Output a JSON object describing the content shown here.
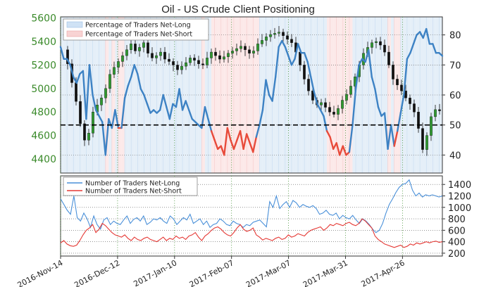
{
  "chart_data": [
    {
      "type": "line",
      "title": "Oil - US Crude Client Positioning",
      "left_axis": {
        "ticks": [
          4400,
          4600,
          4800,
          5000,
          5200,
          5400,
          5600
        ],
        "range": [
          4280,
          5610
        ],
        "color": "#3a8a2a"
      },
      "right_axis": {
        "ticks": [
          40,
          50,
          60,
          70,
          80
        ],
        "range": [
          34,
          86
        ]
      },
      "reference_level": 50,
      "legend": [
        "Percentage of Traders Net-Long",
        "Percentage of Traders Net-Short"
      ],
      "legend_placement": "top-left",
      "price_candles_close": [
        5330,
        5210,
        5050,
        4890,
        4700,
        4560,
        4620,
        4800,
        4860,
        4920,
        5000,
        5120,
        5180,
        5230,
        5280,
        5330,
        5380,
        5320,
        5350,
        5390,
        5300,
        5260,
        5280,
        5310,
        5250,
        5230,
        5200,
        5160,
        5190,
        5220,
        5260,
        5240,
        5210,
        5200,
        5260,
        5310,
        5280,
        5250,
        5270,
        5300,
        5320,
        5340,
        5360,
        5330,
        5300,
        5320,
        5380,
        5410,
        5440,
        5460,
        5470,
        5480,
        5450,
        5420,
        5390,
        5310,
        5200,
        5080,
        4980,
        4900,
        4860,
        4880,
        4840,
        4800,
        4780,
        4830,
        4900,
        4950,
        5020,
        5100,
        5200,
        5300,
        5350,
        5390,
        5400,
        5370,
        5310,
        5200,
        5080,
        5030,
        4980,
        4920,
        4870,
        4800,
        4660,
        4480,
        4600,
        4760,
        4820,
        4810
      ],
      "net_long_pct_series": [
        {
          "x": 0,
          "y": 76
        },
        {
          "x": 1,
          "y": 72
        },
        {
          "x": 2,
          "y": 72
        },
        {
          "x": 3,
          "y": 70
        },
        {
          "x": 4,
          "y": 66
        },
        {
          "x": 5,
          "y": 64
        },
        {
          "x": 6,
          "y": 67
        },
        {
          "x": 7,
          "y": 68
        },
        {
          "x": 8,
          "y": 52
        },
        {
          "x": 9,
          "y": 70
        },
        {
          "x": 10,
          "y": 60
        },
        {
          "x": 11,
          "y": 55
        },
        {
          "x": 12,
          "y": 53
        },
        {
          "x": 13,
          "y": 51
        },
        {
          "x": 14,
          "y": 40
        },
        {
          "x": 15,
          "y": 52
        },
        {
          "x": 16,
          "y": 49
        },
        {
          "x": 17,
          "y": 55
        },
        {
          "x": 18,
          "y": 49
        },
        {
          "x": 19,
          "y": 49
        },
        {
          "x": 20,
          "y": 59
        },
        {
          "x": 21,
          "y": 63
        },
        {
          "x": 22,
          "y": 66
        },
        {
          "x": 23,
          "y": 70
        },
        {
          "x": 24,
          "y": 67
        },
        {
          "x": 25,
          "y": 62
        },
        {
          "x": 26,
          "y": 60
        },
        {
          "x": 27,
          "y": 57
        },
        {
          "x": 28,
          "y": 54
        },
        {
          "x": 29,
          "y": 55
        },
        {
          "x": 30,
          "y": 54
        },
        {
          "x": 31,
          "y": 55
        },
        {
          "x": 32,
          "y": 60
        },
        {
          "x": 33,
          "y": 56
        },
        {
          "x": 34,
          "y": 52
        },
        {
          "x": 35,
          "y": 57
        },
        {
          "x": 36,
          "y": 56
        },
        {
          "x": 37,
          "y": 62
        },
        {
          "x": 38,
          "y": 55
        },
        {
          "x": 39,
          "y": 58
        },
        {
          "x": 40,
          "y": 55
        },
        {
          "x": 41,
          "y": 52
        },
        {
          "x": 42,
          "y": 51
        },
        {
          "x": 43,
          "y": 50
        },
        {
          "x": 44,
          "y": 49
        },
        {
          "x": 45,
          "y": 56
        },
        {
          "x": 46,
          "y": 52
        },
        {
          "x": 47,
          "y": 48
        },
        {
          "x": 48,
          "y": 45
        },
        {
          "x": 49,
          "y": 42
        },
        {
          "x": 50,
          "y": 43
        },
        {
          "x": 51,
          "y": 40
        },
        {
          "x": 52,
          "y": 49
        },
        {
          "x": 53,
          "y": 45
        },
        {
          "x": 54,
          "y": 42
        },
        {
          "x": 55,
          "y": 45
        },
        {
          "x": 56,
          "y": 48
        },
        {
          "x": 57,
          "y": 42
        },
        {
          "x": 58,
          "y": 47
        },
        {
          "x": 59,
          "y": 44
        },
        {
          "x": 60,
          "y": 41
        },
        {
          "x": 61,
          "y": 46
        },
        {
          "x": 62,
          "y": 50
        },
        {
          "x": 63,
          "y": 55
        },
        {
          "x": 64,
          "y": 65
        },
        {
          "x": 65,
          "y": 60
        },
        {
          "x": 66,
          "y": 58
        },
        {
          "x": 67,
          "y": 66
        },
        {
          "x": 68,
          "y": 76
        },
        {
          "x": 69,
          "y": 78
        },
        {
          "x": 70,
          "y": 76
        },
        {
          "x": 71,
          "y": 73
        },
        {
          "x": 72,
          "y": 70
        },
        {
          "x": 73,
          "y": 72
        },
        {
          "x": 74,
          "y": 77
        },
        {
          "x": 75,
          "y": 74
        },
        {
          "x": 76,
          "y": 74
        },
        {
          "x": 77,
          "y": 71
        },
        {
          "x": 78,
          "y": 66
        },
        {
          "x": 79,
          "y": 61
        },
        {
          "x": 80,
          "y": 57
        },
        {
          "x": 81,
          "y": 55
        },
        {
          "x": 82,
          "y": 53
        },
        {
          "x": 83,
          "y": 48
        },
        {
          "x": 84,
          "y": 46
        },
        {
          "x": 85,
          "y": 42
        },
        {
          "x": 86,
          "y": 44
        },
        {
          "x": 87,
          "y": 40
        },
        {
          "x": 88,
          "y": 43
        },
        {
          "x": 89,
          "y": 40
        },
        {
          "x": 90,
          "y": 41
        },
        {
          "x": 91,
          "y": 50
        },
        {
          "x": 92,
          "y": 62
        },
        {
          "x": 93,
          "y": 70
        },
        {
          "x": 94,
          "y": 72
        },
        {
          "x": 95,
          "y": 71
        },
        {
          "x": 96,
          "y": 75
        },
        {
          "x": 97,
          "y": 66
        },
        {
          "x": 98,
          "y": 62
        },
        {
          "x": 99,
          "y": 56
        },
        {
          "x": 100,
          "y": 53
        },
        {
          "x": 101,
          "y": 54
        },
        {
          "x": 102,
          "y": 42
        },
        {
          "x": 103,
          "y": 50
        },
        {
          "x": 104,
          "y": 43
        },
        {
          "x": 105,
          "y": 48
        },
        {
          "x": 106,
          "y": 54
        },
        {
          "x": 107,
          "y": 60
        },
        {
          "x": 108,
          "y": 72
        },
        {
          "x": 109,
          "y": 74
        },
        {
          "x": 110,
          "y": 77
        },
        {
          "x": 111,
          "y": 80
        },
        {
          "x": 112,
          "y": 81
        },
        {
          "x": 113,
          "y": 79
        },
        {
          "x": 114,
          "y": 82
        },
        {
          "x": 115,
          "y": 77
        },
        {
          "x": 116,
          "y": 77
        },
        {
          "x": 117,
          "y": 74
        },
        {
          "x": 118,
          "y": 74
        },
        {
          "x": 119,
          "y": 73
        }
      ]
    },
    {
      "type": "line",
      "y_ticks": [
        200,
        400,
        600,
        800,
        1000,
        1200,
        1400
      ],
      "y_range": [
        150,
        1550
      ],
      "legend_placement": "top-left",
      "x_tick_labels": [
        "2016-Nov-14",
        "2016-Dec-12",
        "2017-Jan-10",
        "2017-Feb-07",
        "2017-Mar-07",
        "2017-Mar-31",
        "2017-Apr-26"
      ],
      "series": [
        {
          "name": "Number of Traders Net-Long",
          "color": "#4a90d9",
          "values": [
            1150,
            1050,
            950,
            880,
            1200,
            820,
            760,
            900,
            800,
            650,
            850,
            700,
            620,
            780,
            820,
            700,
            760,
            720,
            700,
            780,
            850,
            720,
            790,
            820,
            760,
            850,
            700,
            740,
            800,
            780,
            820,
            760,
            720,
            850,
            800,
            700,
            760,
            820,
            780,
            880,
            720,
            760,
            800,
            700,
            760,
            650,
            700,
            720,
            800,
            760,
            700,
            680,
            760,
            720,
            700,
            650,
            700,
            680,
            740,
            760,
            780,
            720,
            660,
            1100,
            1000,
            1200,
            980,
            1050,
            1100,
            1000,
            1120,
            1080,
            1000,
            1050,
            1020,
            1000,
            1030,
            980,
            880,
            900,
            950,
            880,
            860,
            900,
            800,
            860,
            820,
            800,
            860,
            780,
            720,
            800,
            760,
            700,
            620,
            560,
            600,
            720,
            900,
            1050,
            1150,
            1260,
            1350,
            1400,
            1420,
            1480,
            1300,
            1200,
            1250,
            1180,
            1220,
            1200,
            1220,
            1200,
            1180,
            1200
          ]
        },
        {
          "name": "Number of Traders Net-Short",
          "color": "#e53935",
          "values": [
            380,
            420,
            360,
            330,
            320,
            340,
            420,
            520,
            600,
            640,
            700,
            560,
            620,
            720,
            680,
            620,
            560,
            520,
            500,
            480,
            520,
            460,
            420,
            480,
            440,
            420,
            460,
            480,
            440,
            420,
            400,
            440,
            480,
            420,
            460,
            440,
            500,
            460,
            480,
            440,
            500,
            520,
            560,
            480,
            420,
            500,
            540,
            600,
            640,
            660,
            620,
            560,
            520,
            500,
            560,
            640,
            700,
            620,
            580,
            600,
            640,
            520,
            480,
            430,
            460,
            440,
            420,
            460,
            480,
            440,
            460,
            520,
            480,
            500,
            540,
            520,
            500,
            560,
            600,
            620,
            640,
            660,
            600,
            640,
            700,
            680,
            720,
            700,
            680,
            720,
            740,
            700,
            680,
            720,
            800,
            760,
            700,
            640,
            500,
            440,
            400,
            360,
            340,
            320,
            300,
            320,
            340,
            300,
            320,
            360,
            340,
            380,
            360,
            380,
            400,
            380,
            400,
            410,
            390,
            400
          ]
        }
      ]
    }
  ]
}
